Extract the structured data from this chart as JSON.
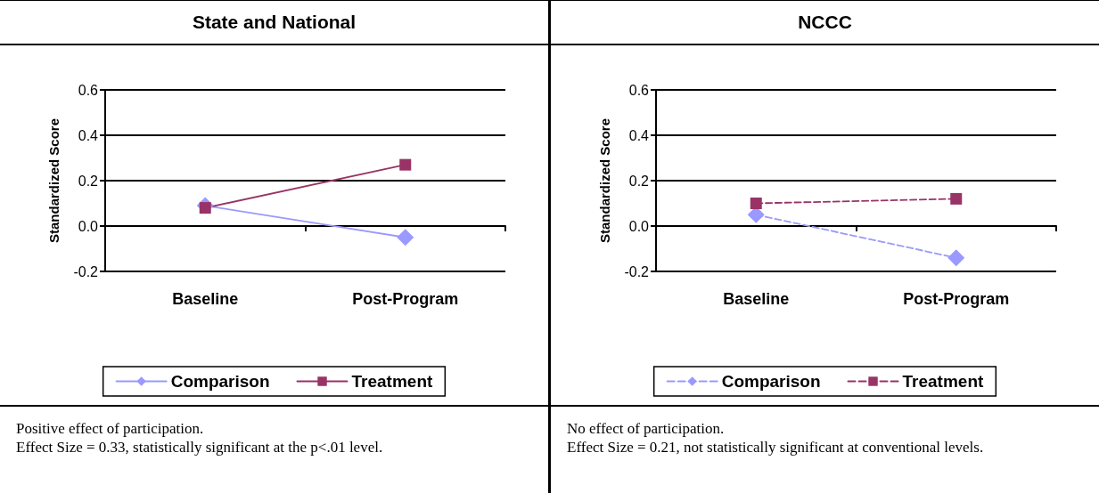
{
  "chart_data": [
    {
      "type": "line",
      "title": "State and National",
      "ylabel": "Standardized Score",
      "categories": [
        "Baseline",
        "Post-Program"
      ],
      "series": [
        {
          "name": "Comparison",
          "color": "#9999ff",
          "marker": "diamond",
          "line_style": "solid",
          "values": [
            0.09,
            -0.05
          ]
        },
        {
          "name": "Treatment",
          "color": "#993366",
          "marker": "square",
          "line_style": "solid",
          "values": [
            0.08,
            0.27
          ]
        }
      ],
      "ylim": [
        -0.2,
        0.6
      ],
      "yticks": [
        {
          "value": -0.2,
          "label": "-0.2"
        },
        {
          "value": 0,
          "label": "0.0"
        },
        {
          "value": 0.2,
          "label": "0.2"
        },
        {
          "value": 0.4,
          "label": "0.4"
        },
        {
          "value": 0.6,
          "label": "0.6"
        }
      ],
      "grid": "y",
      "legend": "bottom",
      "annotations": [
        "Positive effect of participation.",
        "Effect Size = 0.33, statistically significant at the p<.01 level."
      ]
    },
    {
      "type": "line",
      "title": "NCCC",
      "ylabel": "Standardized Score",
      "categories": [
        "Baseline",
        "Post-Program"
      ],
      "series": [
        {
          "name": "Comparison",
          "color": "#9999ff",
          "marker": "diamond",
          "line_style": "dashed",
          "values": [
            0.05,
            -0.14
          ]
        },
        {
          "name": "Treatment",
          "color": "#993366",
          "marker": "square",
          "line_style": "dashed",
          "values": [
            0.1,
            0.12
          ]
        }
      ],
      "ylim": [
        -0.2,
        0.6
      ],
      "yticks": [
        {
          "value": -0.2,
          "label": "-0.2"
        },
        {
          "value": 0,
          "label": "0.0"
        },
        {
          "value": 0.2,
          "label": "0.2"
        },
        {
          "value": 0.4,
          "label": "0.4"
        },
        {
          "value": 0.6,
          "label": "0.6"
        }
      ],
      "grid": "y",
      "legend": "bottom",
      "annotations": [
        "No effect of participation.",
        "Effect Size = 0.21, not statistically significant at conventional levels."
      ]
    }
  ]
}
